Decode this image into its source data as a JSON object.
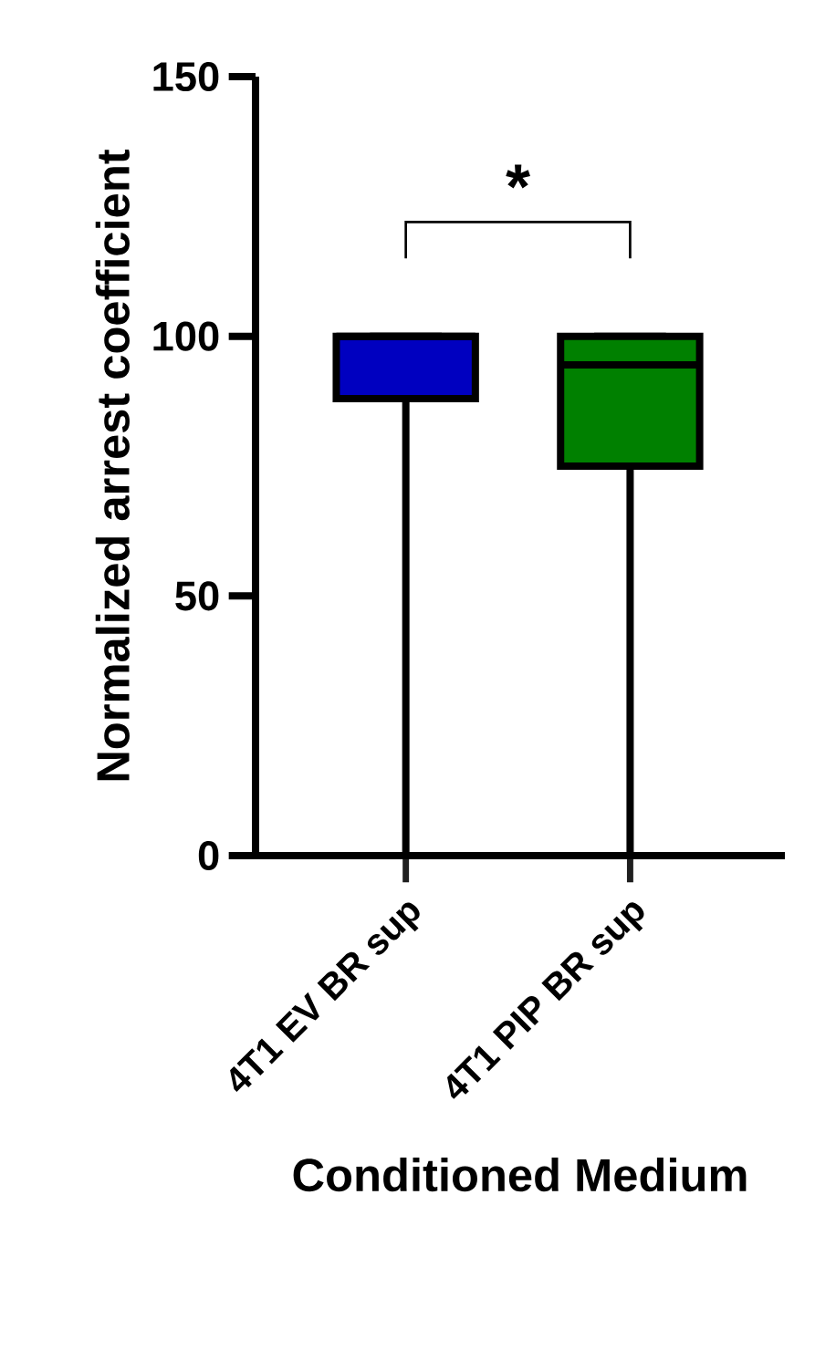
{
  "chart_data": {
    "type": "box",
    "xlabel": "Conditioned Medium",
    "ylabel": "Normalized arrest coefficient",
    "categories": [
      "4T1 EV BR sup",
      "4T1 PIP BR sup"
    ],
    "boxes": [
      {
        "low": 0,
        "q1": 88,
        "median": 100,
        "q3": 100,
        "high": 100
      },
      {
        "low": 0,
        "q1": 75,
        "median": 94.5,
        "q3": 100,
        "high": 100
      }
    ],
    "colors": [
      "#0000c0",
      "#008000"
    ],
    "ylim": [
      0,
      150
    ],
    "yticks": [
      0,
      50,
      100,
      150
    ],
    "annotations": [
      "*"
    ]
  }
}
